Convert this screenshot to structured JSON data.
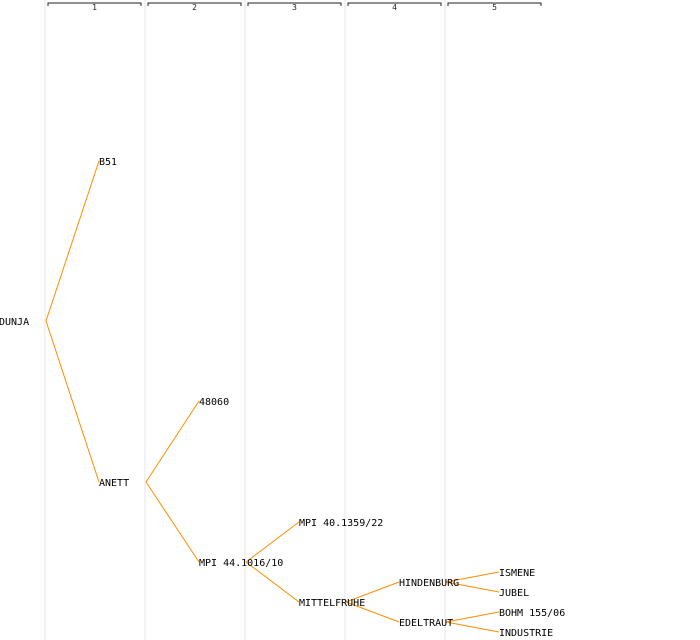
{
  "generations": [
    "1",
    "2",
    "3",
    "4",
    "5"
  ],
  "colors": {
    "edge": "#ff8c00",
    "generation_line": "#e6e6e6",
    "bracket": "#222222",
    "text": "#000000"
  },
  "tree": {
    "root": "DUNJA",
    "nodes": [
      {
        "id": "dunja",
        "label": "DUNJA",
        "generation": 0,
        "parent": null
      },
      {
        "id": "b51",
        "label": "B51",
        "generation": 1,
        "parent": "dunja"
      },
      {
        "id": "anett",
        "label": "ANETT",
        "generation": 1,
        "parent": "dunja"
      },
      {
        "id": "n48060",
        "label": "48060",
        "generation": 2,
        "parent": "anett"
      },
      {
        "id": "mpi44",
        "label": "MPI 44.1016/10",
        "generation": 2,
        "parent": "anett"
      },
      {
        "id": "mpi40",
        "label": "MPI 40.1359/22",
        "generation": 3,
        "parent": "mpi44"
      },
      {
        "id": "mittelfruhe",
        "label": "MITTELFRUHE",
        "generation": 3,
        "parent": "mpi44"
      },
      {
        "id": "hindenburg",
        "label": "HINDENBURG",
        "generation": 4,
        "parent": "mittelfruhe"
      },
      {
        "id": "edeltraut",
        "label": "EDELTRAUT",
        "generation": 4,
        "parent": "mittelfruhe"
      },
      {
        "id": "ismene",
        "label": "ISMENE",
        "generation": 5,
        "parent": "hindenburg"
      },
      {
        "id": "jubel",
        "label": "JUBEL",
        "generation": 5,
        "parent": "hindenburg"
      },
      {
        "id": "bohm",
        "label": "BOHM 155/06",
        "generation": 5,
        "parent": "edeltraut"
      },
      {
        "id": "industrie",
        "label": "INDUSTRIE",
        "generation": 5,
        "parent": "edeltraut"
      }
    ]
  }
}
